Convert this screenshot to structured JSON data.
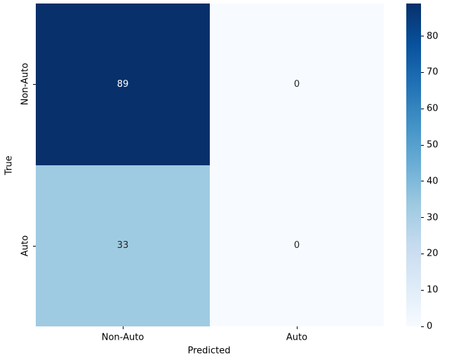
{
  "chart_data": {
    "type": "heatmap",
    "title": "",
    "xlabel": "Predicted",
    "ylabel": "True",
    "x_categories": [
      "Non-Auto",
      "Auto"
    ],
    "y_categories": [
      "Non-Auto",
      "Auto"
    ],
    "values": [
      [
        89,
        0
      ],
      [
        33,
        0
      ]
    ],
    "colormap": "Blues",
    "vmin": 0,
    "vmax": 89,
    "colorbar_ticks": [
      0,
      10,
      20,
      30,
      40,
      50,
      60,
      70,
      80
    ],
    "colormap_stops": [
      "#f7fbff",
      "#deebf7",
      "#c6dbef",
      "#9ecae1",
      "#6baed6",
      "#4292c6",
      "#2171b5",
      "#08519c",
      "#08306b"
    ],
    "cell_colors": [
      [
        "#08306b",
        "#f7fbff"
      ],
      [
        "#9fcbe2",
        "#f7fbff"
      ]
    ],
    "cell_text_colors": [
      [
        "#ffffff",
        "#262626"
      ],
      [
        "#262626",
        "#262626"
      ]
    ],
    "grid": false,
    "legend_position": "colorbar-right"
  }
}
